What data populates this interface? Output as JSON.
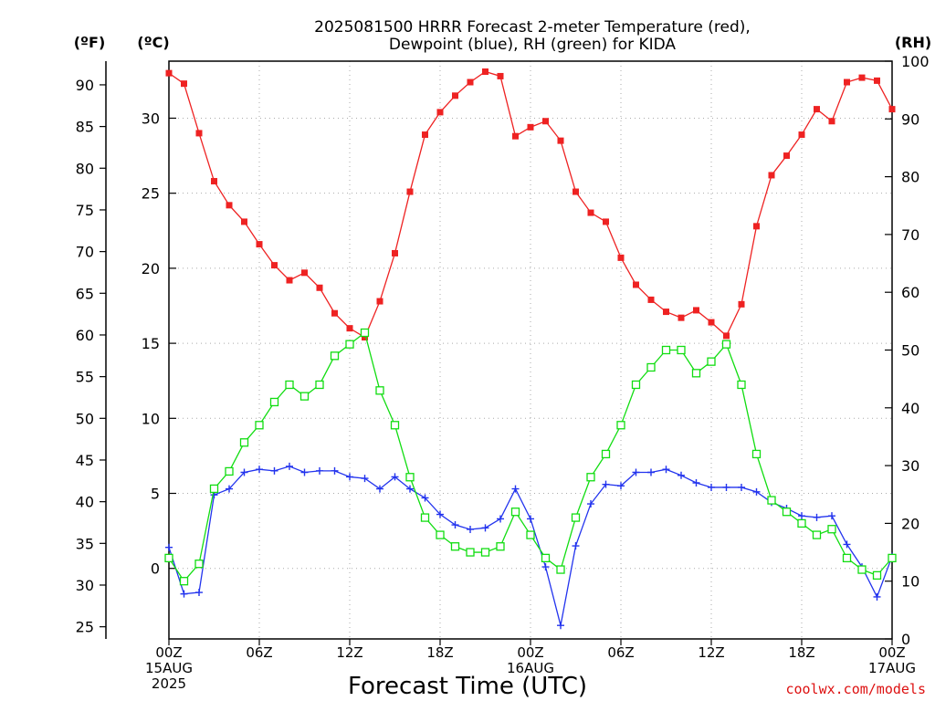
{
  "title_line1": "2025081500 HRRR Forecast 2-meter Temperature (red),",
  "title_line2": "Dewpoint (blue), RH (green) for KIDA",
  "unit_f": "(ºF)",
  "unit_c": "(ºC)",
  "unit_rh": "(RH)",
  "xlabel": "Forecast Time (UTC)",
  "credit": "coolwx.com/models",
  "colors": {
    "temperature": "#ee2222",
    "dewpoint": "#2233ee",
    "rh": "#11dd11",
    "grid": "#aaaaaa",
    "credit": "#dd1111"
  },
  "chart_data": {
    "type": "line",
    "x": [
      0,
      1,
      2,
      3,
      4,
      5,
      6,
      7,
      8,
      9,
      10,
      11,
      12,
      13,
      14,
      15,
      16,
      17,
      18,
      19,
      20,
      21,
      22,
      23,
      24,
      25,
      26,
      27,
      28,
      29,
      30,
      31,
      32,
      33,
      34,
      35,
      36,
      37,
      38,
      39,
      40,
      41,
      42,
      43,
      44,
      45,
      46,
      47,
      48
    ],
    "x_ticks": [
      {
        "hour": 0,
        "labels": [
          "00Z",
          "15AUG",
          "2025"
        ]
      },
      {
        "hour": 6,
        "labels": [
          "06Z"
        ]
      },
      {
        "hour": 12,
        "labels": [
          "12Z"
        ]
      },
      {
        "hour": 18,
        "labels": [
          "18Z"
        ]
      },
      {
        "hour": 24,
        "labels": [
          "00Z",
          "16AUG"
        ]
      },
      {
        "hour": 30,
        "labels": [
          "06Z"
        ]
      },
      {
        "hour": 36,
        "labels": [
          "12Z"
        ]
      },
      {
        "hour": 42,
        "labels": [
          "18Z"
        ]
      },
      {
        "hour": 48,
        "labels": [
          "00Z",
          "17AUG"
        ]
      }
    ],
    "xlim": [
      0,
      48
    ],
    "ylim_c": [
      -4.7,
      33.8
    ],
    "yticks_c": [
      0,
      5,
      10,
      15,
      20,
      25,
      30
    ],
    "yticks_f": [
      25,
      30,
      35,
      40,
      45,
      50,
      55,
      60,
      65,
      70,
      75,
      80,
      85,
      90
    ],
    "ylim_rh": [
      0,
      100
    ],
    "yticks_rh": [
      0,
      10,
      20,
      30,
      40,
      50,
      60,
      70,
      80,
      90,
      100
    ],
    "grid": true,
    "series": [
      {
        "name": "Temperature",
        "axis": "celsius",
        "marker": "filled-square",
        "values": [
          33.0,
          32.3,
          29.0,
          25.8,
          24.2,
          23.1,
          21.6,
          20.2,
          19.2,
          19.7,
          18.7,
          17.0,
          16.0,
          15.4,
          17.8,
          21.0,
          25.1,
          28.9,
          30.4,
          31.5,
          32.4,
          33.1,
          32.8,
          28.8,
          29.4,
          29.8,
          28.5,
          25.1,
          23.7,
          23.1,
          20.7,
          18.9,
          17.9,
          17.1,
          16.7,
          17.2,
          16.4,
          15.5,
          17.6,
          22.8,
          26.2,
          27.5,
          28.9,
          30.6,
          29.8,
          32.4,
          32.7,
          32.5,
          30.6
        ]
      },
      {
        "name": "Dewpoint",
        "axis": "celsius",
        "marker": "plus",
        "values": [
          1.4,
          -1.7,
          -1.6,
          4.9,
          5.3,
          6.4,
          6.6,
          6.5,
          6.8,
          6.4,
          6.5,
          6.5,
          6.1,
          6.0,
          5.3,
          6.1,
          5.3,
          4.7,
          3.6,
          2.9,
          2.6,
          2.7,
          3.3,
          5.3,
          3.3,
          0.1,
          -3.8,
          1.5,
          4.3,
          5.6,
          5.5,
          6.4,
          6.4,
          6.6,
          6.2,
          5.7,
          5.4,
          5.4,
          5.4,
          5.1,
          4.4,
          4.0,
          3.5,
          3.4,
          3.5,
          1.6,
          0.1,
          -1.9,
          0.8
        ]
      },
      {
        "name": "RH",
        "axis": "rh",
        "marker": "open-square",
        "values": [
          14,
          10,
          13,
          26,
          29,
          34,
          37,
          41,
          44,
          42,
          44,
          49,
          51,
          53,
          43,
          37,
          28,
          21,
          18,
          16,
          15,
          15,
          16,
          22,
          18,
          14,
          12,
          21,
          28,
          32,
          37,
          44,
          47,
          50,
          50,
          46,
          48,
          51,
          44,
          32,
          24,
          22,
          20,
          18,
          19,
          14,
          12,
          11,
          14
        ]
      }
    ]
  }
}
